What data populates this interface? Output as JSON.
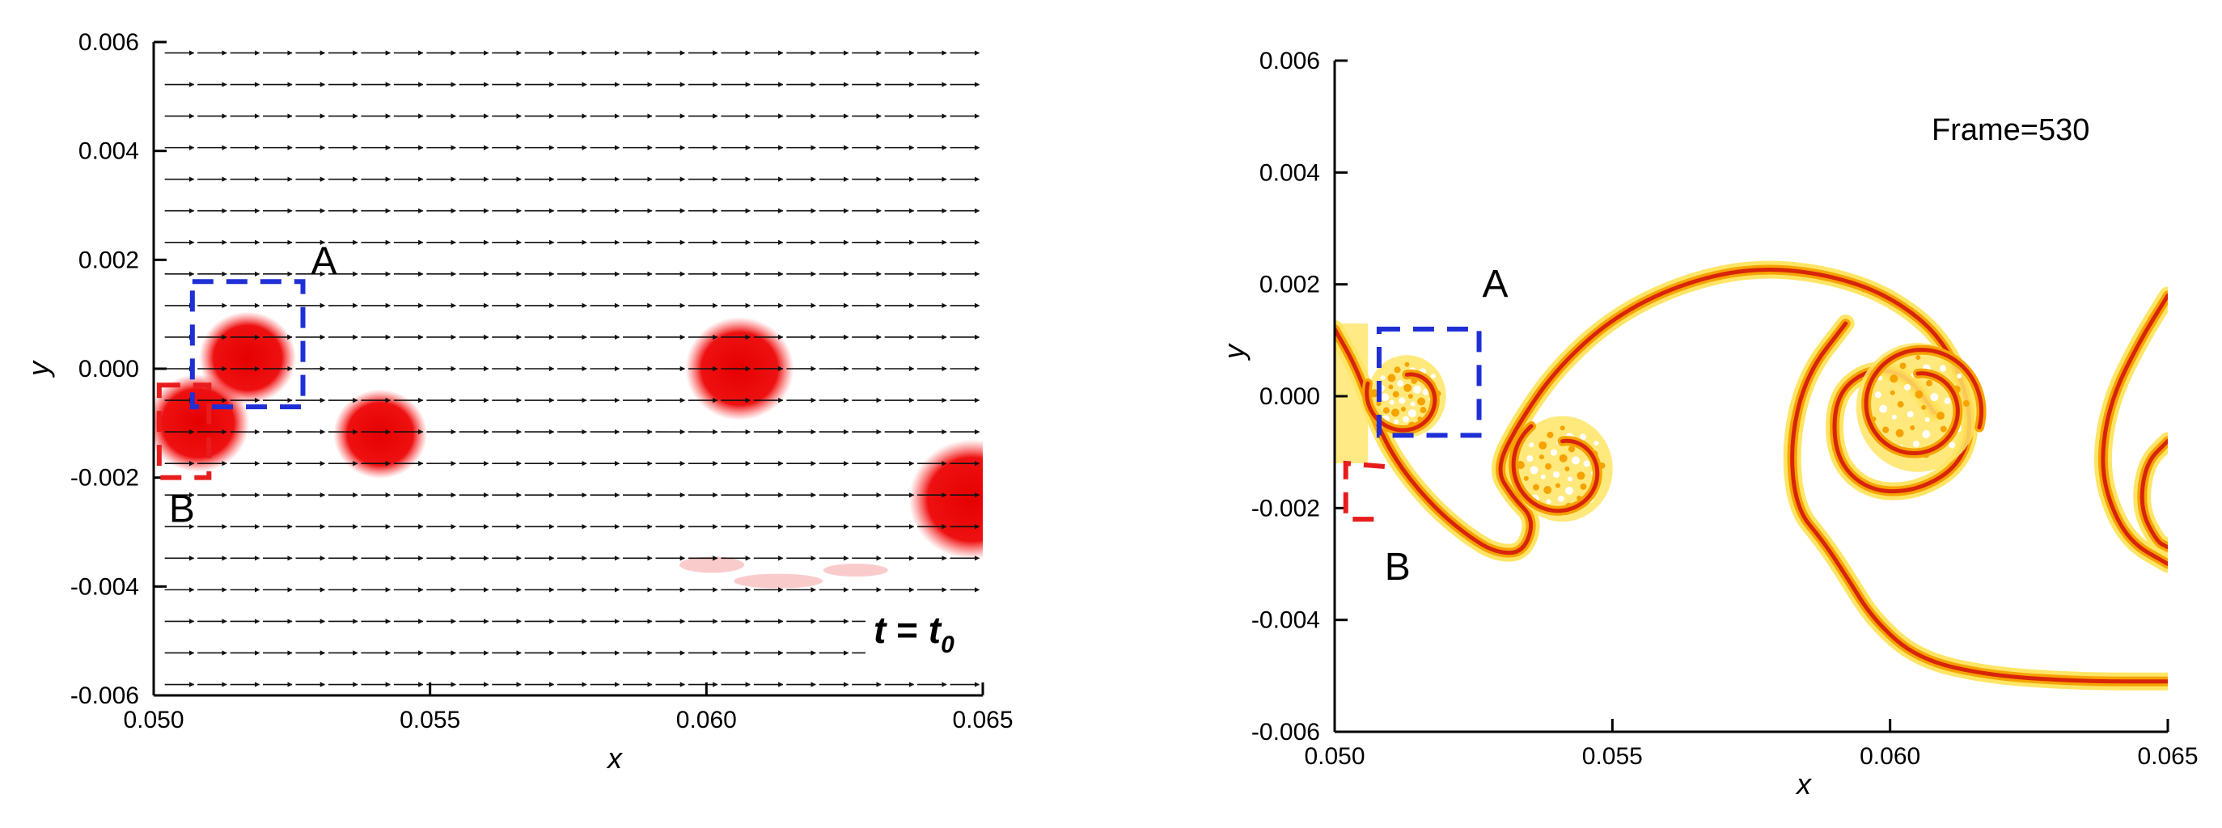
{
  "colors": {
    "red_particle": "#ee1111",
    "box_A": "#1f2fd6",
    "box_B": "#e81c1c",
    "contour_outer": "#ffe566",
    "contour_mid": "#f6a300",
    "contour_inner": "#d8240b",
    "arrow": "#111111"
  },
  "chart_data": [
    {
      "type": "vector-field",
      "panel": "left",
      "xlabel": "x",
      "ylabel": "y",
      "xlim": [
        0.05,
        0.065
      ],
      "ylim": [
        -0.006,
        0.006
      ],
      "xticks": [
        "0.050",
        "0.055",
        "0.060",
        "0.065"
      ],
      "yticks": [
        "-0.006",
        "-0.004",
        "-0.002",
        "0.000",
        "0.002",
        "0.004",
        "0.006"
      ],
      "time_label": {
        "t": "t",
        "eq": "=",
        "sub_base": "t",
        "sub": "0"
      },
      "particles": [
        {
          "x": 0.0508,
          "y": -0.001,
          "r": 0.0009
        },
        {
          "x": 0.0517,
          "y": 0.0002,
          "r": 0.00085
        },
        {
          "x": 0.0541,
          "y": -0.0012,
          "r": 0.00082
        },
        {
          "x": 0.0606,
          "y": 0.0,
          "r": 0.00095
        },
        {
          "x": 0.0648,
          "y": -0.0024,
          "r": 0.0011
        }
      ],
      "vortex_centers": [
        {
          "x": 0.0517,
          "y": 0.0002
        },
        {
          "x": 0.0541,
          "y": -0.0012
        },
        {
          "x": 0.0606,
          "y": 0.0
        }
      ],
      "box_A": {
        "label": "A",
        "x0": 0.0507,
        "x1": 0.0527,
        "y0": -0.0007,
        "y1": 0.0016
      },
      "box_B": {
        "label": "B",
        "x0": 0.0501,
        "x1": 0.051,
        "y0": -0.002,
        "y1": -0.0003
      }
    },
    {
      "type": "contour",
      "panel": "right",
      "xlabel": "x",
      "ylabel": "y",
      "xlim": [
        0.05,
        0.065
      ],
      "ylim": [
        -0.006,
        0.006
      ],
      "xticks": [
        "0.050",
        "0.055",
        "0.060",
        "0.065"
      ],
      "yticks": [
        "-0.006",
        "-0.004",
        "-0.002",
        "0.000",
        "0.002",
        "0.004",
        "0.006"
      ],
      "frame_label": "Frame=530",
      "interface_curve": [
        [
          0.05,
          0.0012
        ],
        [
          0.0504,
          0.0005
        ],
        [
          0.0508,
          -0.0006
        ],
        [
          0.0512,
          -0.0013
        ],
        [
          0.0518,
          -0.002
        ],
        [
          0.0524,
          -0.0025
        ],
        [
          0.0529,
          -0.0028
        ],
        [
          0.0534,
          -0.0028
        ],
        [
          0.0536,
          -0.0022
        ],
        [
          0.0532,
          -0.0018
        ],
        [
          0.0529,
          -0.0013
        ],
        [
          0.0533,
          -0.0005
        ],
        [
          0.054,
          0.0005
        ],
        [
          0.055,
          0.0014
        ],
        [
          0.0562,
          0.002
        ],
        [
          0.0575,
          0.0023
        ],
        [
          0.0588,
          0.0022
        ],
        [
          0.06,
          0.0018
        ],
        [
          0.061,
          0.001
        ],
        [
          0.0615,
          -0.0003
        ],
        [
          0.0613,
          -0.0012
        ],
        [
          0.0605,
          -0.0017
        ],
        [
          0.0596,
          -0.0017
        ],
        [
          0.059,
          -0.0011
        ],
        [
          0.059,
          0.0
        ],
        [
          0.0596,
          0.0005
        ],
        [
          0.0603,
          0.0004
        ],
        [
          0.0608,
          -0.0003
        ]
      ],
      "lower_curve": [
        [
          0.0592,
          0.0013
        ],
        [
          0.0585,
          0.0004
        ],
        [
          0.0582,
          -0.0008
        ],
        [
          0.0583,
          -0.002
        ],
        [
          0.0588,
          -0.0026
        ],
        [
          0.0592,
          -0.0032
        ],
        [
          0.0597,
          -0.004
        ],
        [
          0.0605,
          -0.0047
        ],
        [
          0.0618,
          -0.005
        ],
        [
          0.0635,
          -0.0051
        ],
        [
          0.065,
          -0.0051
        ]
      ],
      "small_vortex": {
        "x": 0.0541,
        "y": -0.0013,
        "r": 0.0009
      },
      "big_vortex": {
        "x": 0.0605,
        "y": -0.0002,
        "r": 0.0011
      },
      "left_vortex": {
        "x": 0.0513,
        "y": 0.0,
        "r": 0.0007
      },
      "right_edge_curve": [
        [
          0.065,
          0.0018
        ],
        [
          0.0645,
          0.001
        ],
        [
          0.064,
          0.0
        ],
        [
          0.0638,
          -0.001
        ],
        [
          0.0639,
          -0.0018
        ],
        [
          0.0643,
          -0.0026
        ],
        [
          0.065,
          -0.003
        ]
      ],
      "right_edge_inner": [
        [
          0.065,
          -0.0008
        ],
        [
          0.0646,
          -0.0012
        ],
        [
          0.0645,
          -0.002
        ],
        [
          0.0648,
          -0.0026
        ],
        [
          0.065,
          -0.0027
        ]
      ],
      "box_A": {
        "label": "A",
        "x0": 0.0508,
        "x1": 0.0526,
        "y0": -0.0007,
        "y1": 0.0012
      },
      "box_B": {
        "label": "B",
        "x0": 0.0497,
        "x1": 0.0509,
        "y0": -0.0022,
        "y1": -0.0012
      }
    }
  ]
}
